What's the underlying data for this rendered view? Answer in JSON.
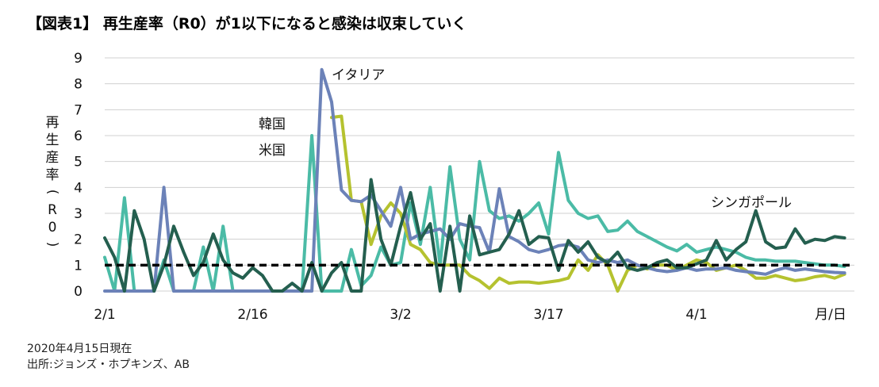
{
  "chart_data": {
    "type": "line",
    "title": "【図表1】 再生産率（R0）が1以下になると感染は収束していく",
    "ylabel": "再生産率（R0）",
    "xlabel": "月/日",
    "ylim": [
      0,
      9
    ],
    "yticks": [
      "0",
      "1",
      "2",
      "3",
      "4",
      "5",
      "6",
      "7",
      "8",
      "9"
    ],
    "x_tick_labels": [
      {
        "day": 0,
        "label": "2/1"
      },
      {
        "day": 15,
        "label": "2/16"
      },
      {
        "day": 30,
        "label": "3/2"
      },
      {
        "day": 45,
        "label": "3/17"
      },
      {
        "day": 60,
        "label": "4/1"
      }
    ],
    "xlim_days": [
      0,
      76
    ],
    "grid": true,
    "reference_line": {
      "value": 1,
      "style": "dashed"
    },
    "series": [
      {
        "name": "イタリア",
        "color": "#6c82b8",
        "x": [
          0,
          1,
          2,
          3,
          4,
          5,
          6,
          7,
          8,
          9,
          10,
          11,
          12,
          13,
          14,
          15,
          16,
          17,
          18,
          19,
          20,
          21,
          22,
          23,
          24,
          25,
          26,
          27,
          28,
          29,
          30,
          31,
          32,
          33,
          34,
          35,
          36,
          37,
          38,
          39,
          40,
          41,
          42,
          43,
          44,
          45,
          46,
          47,
          48,
          49,
          50,
          51,
          52,
          53,
          54,
          55,
          56,
          57,
          58,
          59,
          60,
          61,
          62,
          63,
          64,
          65,
          66,
          67,
          68,
          69,
          70,
          71,
          72,
          73,
          74,
          75
        ],
        "values": [
          0,
          0,
          0,
          0,
          0,
          0,
          4.0,
          0,
          0,
          0,
          0,
          0,
          0,
          0,
          0,
          0,
          0,
          0,
          0,
          0,
          0,
          0,
          8.55,
          7.3,
          3.9,
          3.5,
          3.45,
          3.7,
          3.1,
          2.5,
          4.0,
          2.0,
          2.2,
          2.3,
          2.4,
          2.0,
          2.6,
          2.5,
          2.45,
          1.5,
          3.95,
          2.1,
          1.9,
          1.6,
          1.5,
          1.6,
          1.75,
          1.8,
          1.7,
          1.2,
          1.1,
          1.2,
          1.1,
          1.2,
          1.0,
          0.9,
          0.8,
          0.75,
          0.8,
          0.9,
          0.8,
          0.85,
          0.85,
          0.9,
          0.8,
          0.75,
          0.7,
          0.65,
          0.8,
          0.9,
          0.8,
          0.85,
          0.8,
          0.75,
          0.72,
          0.7
        ]
      },
      {
        "name": "韓国",
        "color": "#b5c22f",
        "x": [
          23,
          24,
          25,
          26,
          27,
          28,
          29,
          30,
          31,
          32,
          33,
          34,
          35,
          36,
          37,
          38,
          39,
          40,
          41,
          42,
          43,
          44,
          45,
          46,
          47,
          48,
          49,
          50,
          51,
          52,
          53,
          54,
          55,
          56,
          57,
          58,
          59,
          60,
          61,
          62,
          63,
          64,
          65,
          66,
          67,
          68,
          69,
          70,
          71,
          72,
          73,
          74,
          75
        ],
        "values": [
          6.7,
          6.75,
          3.5,
          3.45,
          1.8,
          2.9,
          3.4,
          3.0,
          1.8,
          1.6,
          1.1,
          1.0,
          1.0,
          1.0,
          0.6,
          0.4,
          0.1,
          0.5,
          0.3,
          0.35,
          0.35,
          0.3,
          0.35,
          0.4,
          0.5,
          1.2,
          0.8,
          1.4,
          1.0,
          0,
          0.8,
          1.0,
          0.85,
          1.0,
          1.0,
          0.8,
          1.0,
          1.2,
          1.1,
          0.8,
          0.9,
          1.0,
          0.8,
          0.5,
          0.5,
          0.6,
          0.5,
          0.4,
          0.45,
          0.55,
          0.6,
          0.5,
          0.65
        ]
      },
      {
        "name": "米国",
        "color": "#4bbba6",
        "x": [
          0,
          1,
          2,
          3,
          4,
          5,
          6,
          7,
          8,
          9,
          10,
          11,
          12,
          13,
          14,
          15,
          16,
          17,
          18,
          19,
          20,
          21,
          22,
          23,
          24,
          25,
          26,
          27,
          28,
          29,
          30,
          31,
          32,
          33,
          34,
          35,
          36,
          37,
          38,
          39,
          40,
          41,
          42,
          43,
          44,
          45,
          46,
          47,
          48,
          49,
          50,
          51,
          52,
          53,
          54,
          55,
          56,
          57,
          58,
          59,
          60,
          61,
          62,
          63,
          64,
          65,
          66,
          67,
          68,
          69,
          70,
          71,
          72,
          73,
          74,
          75
        ],
        "values": [
          1.3,
          0,
          3.6,
          0,
          0,
          0,
          1.2,
          0,
          0,
          0,
          1.7,
          0,
          2.5,
          0,
          0,
          0,
          0,
          0,
          0,
          0,
          0,
          6.0,
          0,
          0,
          0,
          1.6,
          0.2,
          0.6,
          1.7,
          1.0,
          1.1,
          3.4,
          1.8,
          4.0,
          1.0,
          4.8,
          2.0,
          1.2,
          5.0,
          3.1,
          2.8,
          2.9,
          2.7,
          3.0,
          3.4,
          2.2,
          5.35,
          3.5,
          3.0,
          2.8,
          2.9,
          2.3,
          2.35,
          2.7,
          2.3,
          2.1,
          1.9,
          1.7,
          1.55,
          1.8,
          1.5,
          1.6,
          1.7,
          1.6,
          1.5,
          1.3,
          1.2,
          1.2,
          1.15,
          1.15,
          1.15,
          1.1,
          1.05,
          1.0,
          1.0,
          0.95
        ]
      },
      {
        "name": "シンガポール",
        "color": "#245f4f",
        "x": [
          0,
          1,
          2,
          3,
          4,
          5,
          6,
          7,
          8,
          9,
          10,
          11,
          12,
          13,
          14,
          15,
          16,
          17,
          18,
          19,
          20,
          21,
          22,
          23,
          24,
          25,
          26,
          27,
          28,
          29,
          30,
          31,
          32,
          33,
          34,
          35,
          36,
          37,
          38,
          39,
          40,
          41,
          42,
          43,
          44,
          45,
          46,
          47,
          48,
          49,
          50,
          51,
          52,
          53,
          54,
          55,
          56,
          57,
          58,
          59,
          60,
          61,
          62,
          63,
          64,
          65,
          66,
          67,
          68,
          69,
          70,
          71,
          72,
          73,
          74,
          75
        ],
        "values": [
          2.05,
          1.3,
          0,
          3.1,
          2.0,
          0,
          1.0,
          2.5,
          1.5,
          0.6,
          1.1,
          2.2,
          1.2,
          0.7,
          0.5,
          0.9,
          0.6,
          0,
          0,
          0.3,
          0,
          1.1,
          0,
          0.7,
          1.1,
          0,
          0,
          4.3,
          2.0,
          1.0,
          2.5,
          3.8,
          2.0,
          2.6,
          0,
          2.5,
          0,
          2.9,
          1.4,
          1.5,
          1.6,
          2.2,
          3.1,
          1.8,
          2.1,
          2.05,
          0.8,
          1.95,
          1.5,
          1.9,
          1.3,
          1.1,
          1.5,
          0.9,
          0.8,
          0.9,
          1.1,
          1.2,
          0.9,
          0.9,
          1.05,
          1.2,
          1.95,
          1.2,
          1.6,
          1.9,
          3.1,
          1.9,
          1.65,
          1.7,
          2.4,
          1.85,
          2.0,
          1.95,
          2.1,
          2.05
        ]
      }
    ],
    "series_labels": {
      "italy": "イタリア",
      "korea": "韓国",
      "us": "米国",
      "singapore": "シンガポール"
    },
    "footnote_date": "2020年4月15日現在",
    "footnote_source": "出所:ジョンズ・ホプキンズ、AB"
  }
}
